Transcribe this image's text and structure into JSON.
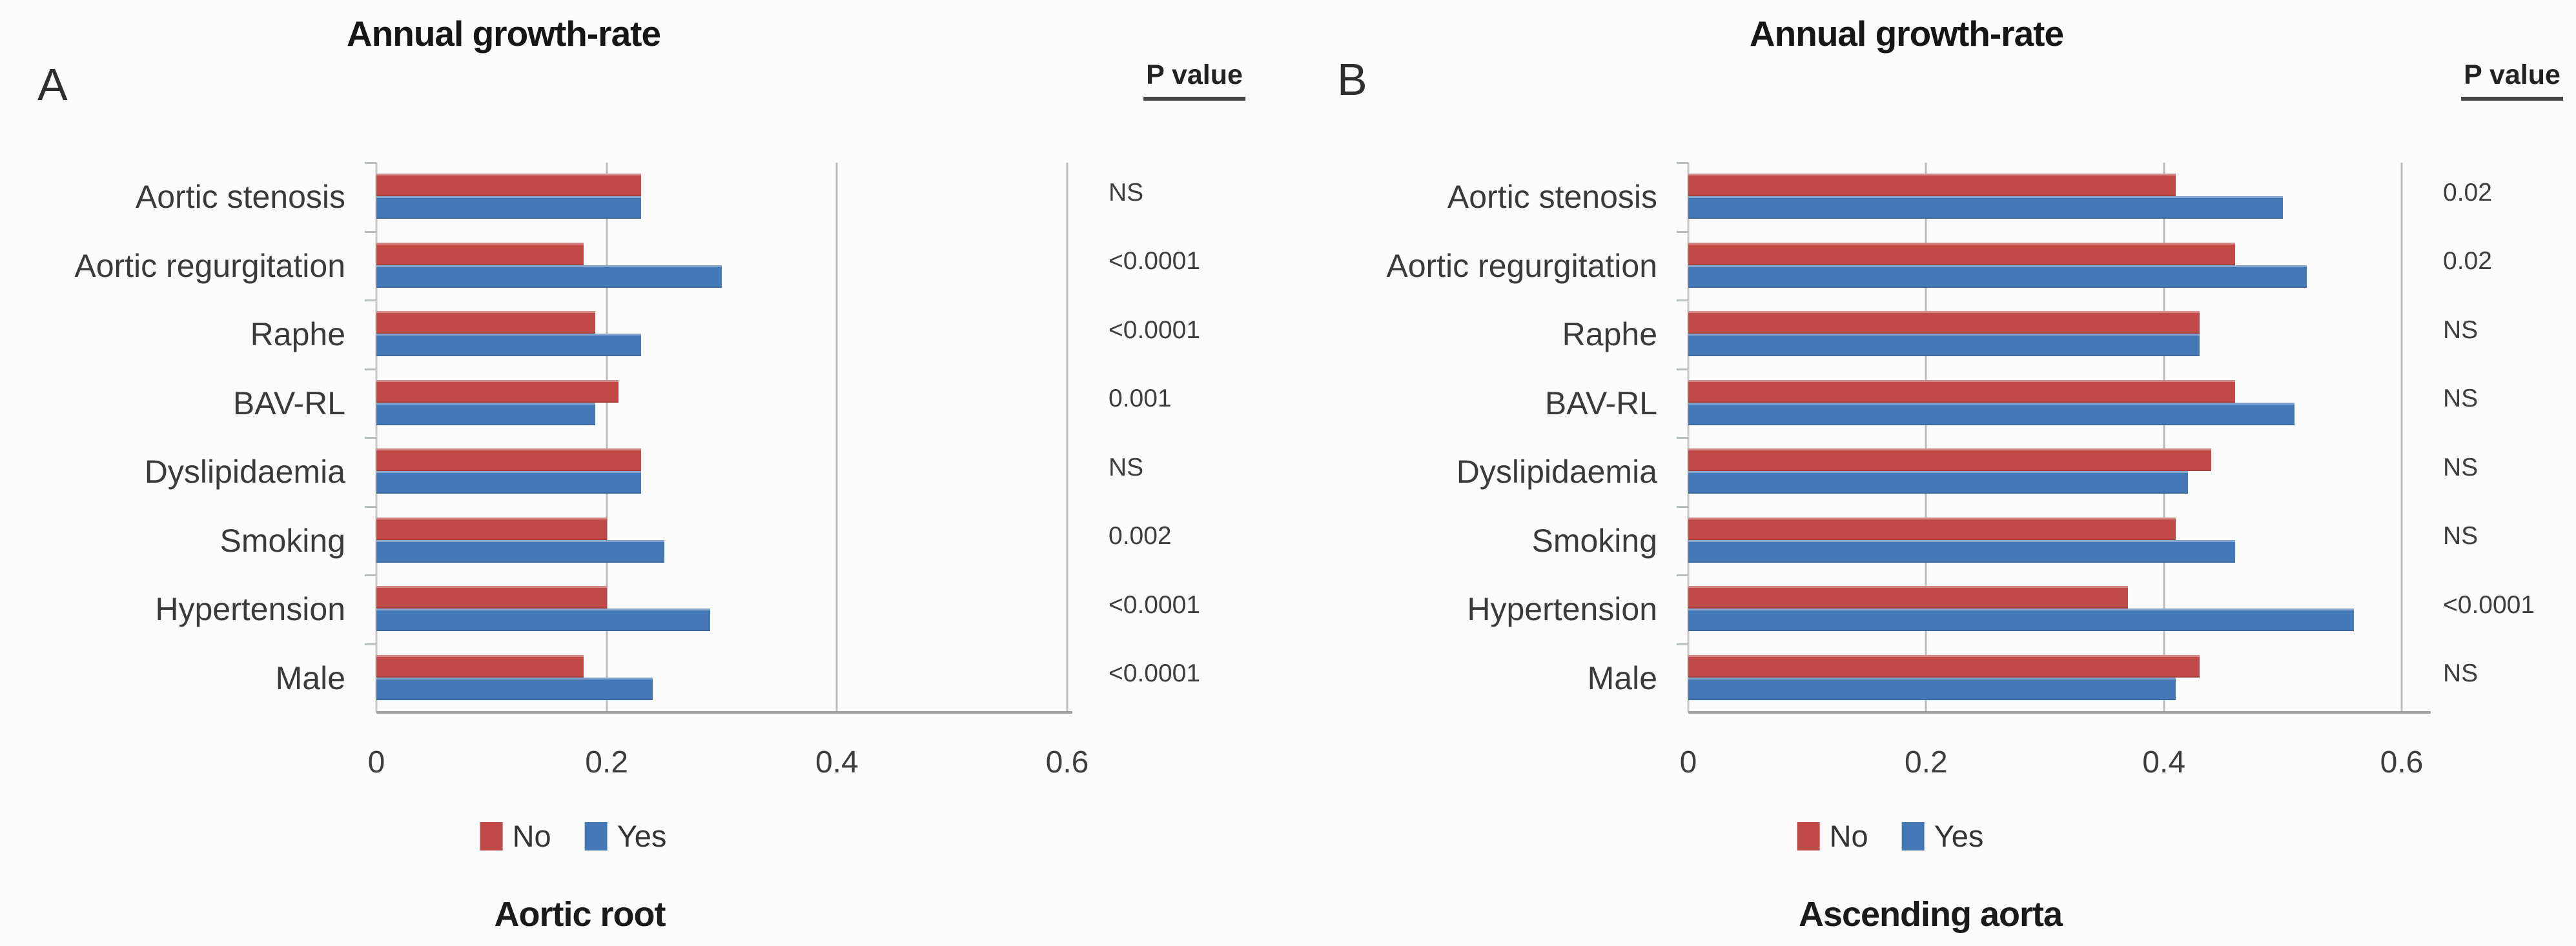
{
  "chart_data": [
    {
      "type": "bar",
      "orientation": "horizontal",
      "panel_label": "A",
      "title": "Annual growth-rate",
      "subtitle": "Aortic root",
      "pvalue_header": "P value",
      "categories": [
        "Aortic stenosis",
        "Aortic regurgitation",
        "Raphe",
        "BAV-RL",
        "Dyslipidaemia",
        "Smoking",
        "Hypertension",
        "Male"
      ],
      "series": [
        {
          "name": "No",
          "color": "#bf4a47",
          "values": [
            0.23,
            0.18,
            0.19,
            0.21,
            0.23,
            0.2,
            0.2,
            0.18
          ]
        },
        {
          "name": "Yes",
          "color": "#4478b6",
          "values": [
            0.23,
            0.3,
            0.23,
            0.19,
            0.23,
            0.25,
            0.29,
            0.24
          ]
        }
      ],
      "p_values": [
        "NS",
        "<0.0001",
        "<0.0001",
        "0.001",
        "NS",
        "0.002",
        "<0.0001",
        "<0.0001"
      ],
      "xlim": [
        0,
        0.6
      ],
      "x_ticks": [
        0,
        0.2,
        0.4,
        0.6
      ],
      "x_tick_labels": [
        "0",
        "0.2",
        "0.4",
        "0.6"
      ],
      "legend_position": "bottom",
      "grid": "vertical",
      "grid_color": "#bdbdbd",
      "axis_color": "#a2a2a2"
    },
    {
      "type": "bar",
      "orientation": "horizontal",
      "panel_label": "B",
      "title": "Annual growth-rate",
      "subtitle": "Ascending aorta",
      "pvalue_header": "P value",
      "categories": [
        "Aortic stenosis",
        "Aortic regurgitation",
        "Raphe",
        "BAV-RL",
        "Dyslipidaemia",
        "Smoking",
        "Hypertension",
        "Male"
      ],
      "series": [
        {
          "name": "No",
          "color": "#bf4a47",
          "values": [
            0.41,
            0.46,
            0.43,
            0.46,
            0.44,
            0.41,
            0.37,
            0.43
          ]
        },
        {
          "name": "Yes",
          "color": "#4478b6",
          "values": [
            0.5,
            0.52,
            0.43,
            0.51,
            0.42,
            0.46,
            0.56,
            0.41
          ]
        }
      ],
      "p_values": [
        "0.02",
        "0.02",
        "NS",
        "NS",
        "NS",
        "NS",
        "<0.0001",
        "NS"
      ],
      "xlim": [
        0,
        0.6
      ],
      "x_ticks": [
        0,
        0.2,
        0.4,
        0.6
      ],
      "x_tick_labels": [
        "0",
        "0.2",
        "0.4",
        "0.6"
      ],
      "legend_position": "bottom",
      "grid": "vertical",
      "grid_color": "#bdbdbd",
      "axis_color": "#a2a2a2"
    }
  ]
}
